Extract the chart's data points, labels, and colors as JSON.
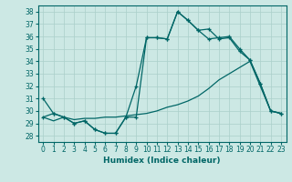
{
  "xlabel": "Humidex (Indice chaleur)",
  "bg_color": "#cce8e4",
  "grid_color": "#aacfca",
  "line_color": "#006666",
  "xlim": [
    -0.5,
    23.5
  ],
  "ylim": [
    27.5,
    38.5
  ],
  "yticks": [
    28,
    29,
    30,
    31,
    32,
    33,
    34,
    35,
    36,
    37,
    38
  ],
  "xticks": [
    0,
    1,
    2,
    3,
    4,
    5,
    6,
    7,
    8,
    9,
    10,
    11,
    12,
    13,
    14,
    15,
    16,
    17,
    18,
    19,
    20,
    21,
    22,
    23
  ],
  "line1_x": [
    0,
    1,
    2,
    3,
    4,
    5,
    6,
    7,
    8,
    9,
    10,
    11,
    12,
    13,
    14,
    15,
    16,
    17,
    18,
    19,
    20,
    21,
    22,
    23
  ],
  "line1_y": [
    31.0,
    29.8,
    29.5,
    29.0,
    29.2,
    28.5,
    28.2,
    28.2,
    29.5,
    32.0,
    35.9,
    35.9,
    35.8,
    38.0,
    37.3,
    36.5,
    36.6,
    35.8,
    35.9,
    34.8,
    34.1,
    32.2,
    30.0,
    29.8
  ],
  "line2_x": [
    0,
    1,
    2,
    3,
    4,
    5,
    6,
    7,
    8,
    9,
    10,
    11,
    12,
    13,
    14,
    15,
    16,
    17,
    18,
    19,
    20,
    21,
    22,
    23
  ],
  "line2_y": [
    29.5,
    29.8,
    29.5,
    29.0,
    29.2,
    28.5,
    28.2,
    28.2,
    29.5,
    29.5,
    35.9,
    35.9,
    35.8,
    38.0,
    37.3,
    36.5,
    35.8,
    35.9,
    36.0,
    35.0,
    34.1,
    32.2,
    30.0,
    29.8
  ],
  "line3_x": [
    0,
    1,
    2,
    3,
    4,
    5,
    6,
    7,
    8,
    9,
    10,
    11,
    12,
    13,
    14,
    15,
    16,
    17,
    18,
    19,
    20,
    21,
    22,
    23
  ],
  "line3_y": [
    29.5,
    29.2,
    29.5,
    29.3,
    29.4,
    29.4,
    29.5,
    29.5,
    29.6,
    29.7,
    29.8,
    30.0,
    30.3,
    30.5,
    30.8,
    31.2,
    31.8,
    32.5,
    33.0,
    33.5,
    34.0,
    32.0,
    30.0,
    29.8
  ]
}
